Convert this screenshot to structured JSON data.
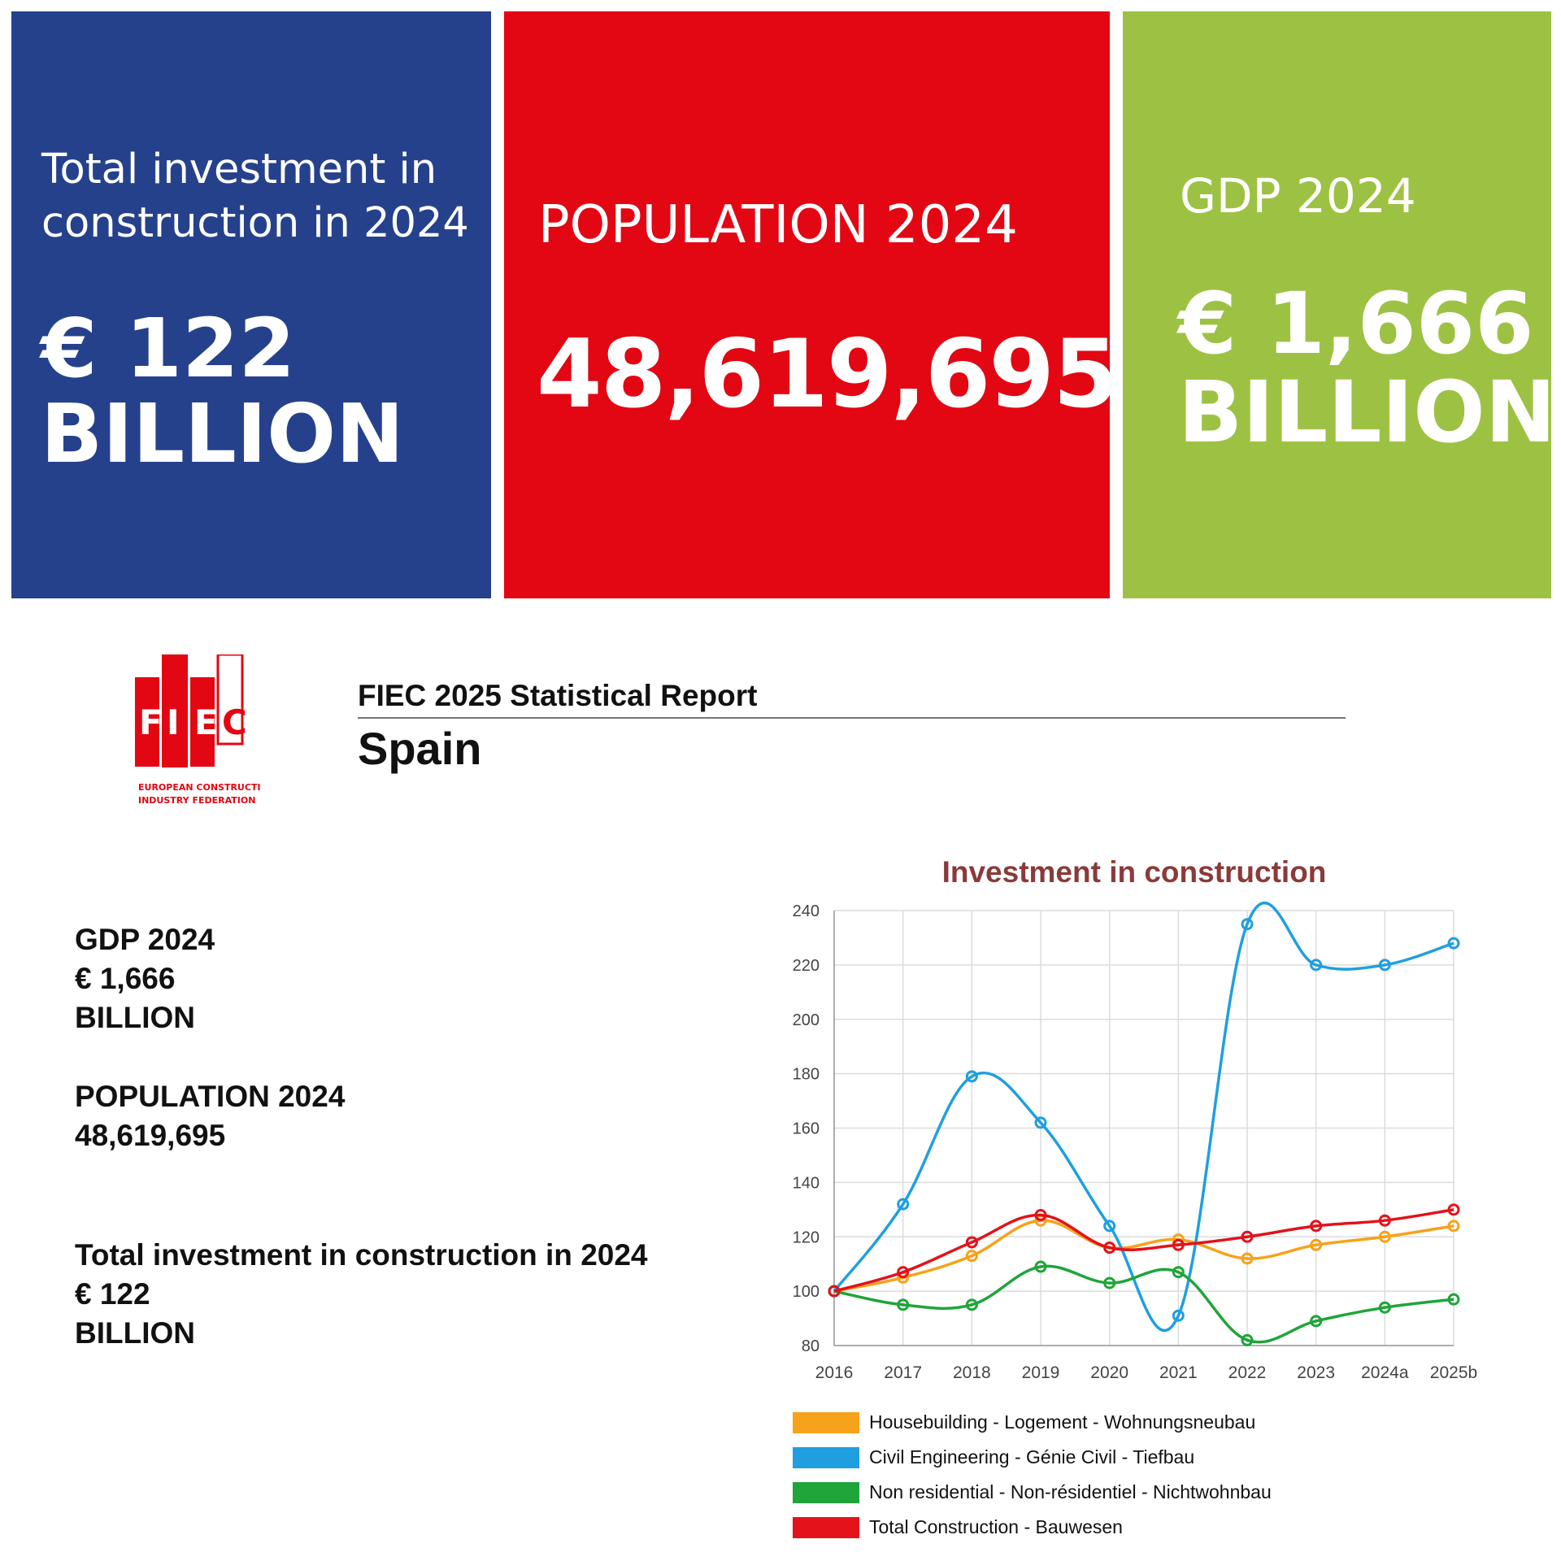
{
  "tiles": {
    "investment": {
      "label_line1": "Total investment in",
      "label_line2": "construction in 2024",
      "value_line1": "€ 122",
      "value_line2": "BILLION",
      "color": "#26418c"
    },
    "population": {
      "label": "POPULATION 2024",
      "value": "48,619,695",
      "color": "#e30613"
    },
    "gdp": {
      "label": "GDP 2024",
      "value_line1": "€ 1,666",
      "value_line2": "BILLION",
      "color": "#9dc243"
    }
  },
  "logo": {
    "letters": [
      "F",
      "I",
      "E",
      "C"
    ],
    "caption_line1": "EUROPEAN CONSTRUCTION",
    "caption_line2": "INDUSTRY FEDERATION",
    "color": "#e30613"
  },
  "header": {
    "title": "FIEC 2025 Statistical Report",
    "country": "Spain"
  },
  "summary": {
    "gdp_label": "GDP 2024",
    "gdp_value": "€ 1,666",
    "gdp_unit": "BILLION",
    "pop_label": "POPULATION 2024",
    "pop_value": "48,619,695",
    "inv_label": "Total investment in construction in 2024",
    "inv_value": "€ 122",
    "inv_unit": "BILLION"
  },
  "chart_data": {
    "type": "line",
    "title": "Investment in construction",
    "categories": [
      "2016",
      "2017",
      "2018",
      "2019",
      "2020",
      "2021",
      "2022",
      "2023",
      "2024a",
      "2025b"
    ],
    "ylim": [
      80,
      240
    ],
    "yticks": [
      80,
      100,
      120,
      140,
      160,
      180,
      200,
      220,
      240
    ],
    "grid": true,
    "legend_position": "bottom",
    "series": [
      {
        "name": "Housebuilding - Logement - Wohnungsneubau",
        "color": "#f7a21b",
        "values": [
          100,
          105,
          113,
          126,
          116,
          119,
          112,
          117,
          120,
          124
        ]
      },
      {
        "name": "Civil Engineering - Génie Civil - Tiefbau",
        "color": "#1f9fe0",
        "values": [
          100,
          132,
          179,
          162,
          124,
          91,
          235,
          220,
          220,
          228
        ]
      },
      {
        "name": "Non residential - Non-résidentiel - Nichtwohnbau",
        "color": "#1fa53a",
        "values": [
          100,
          95,
          95,
          109,
          103,
          107,
          82,
          89,
          94,
          97
        ]
      },
      {
        "name": "Total Construction - Bauwesen",
        "color": "#e3121b",
        "values": [
          100,
          107,
          118,
          128,
          116,
          117,
          120,
          124,
          126,
          130
        ]
      }
    ]
  }
}
